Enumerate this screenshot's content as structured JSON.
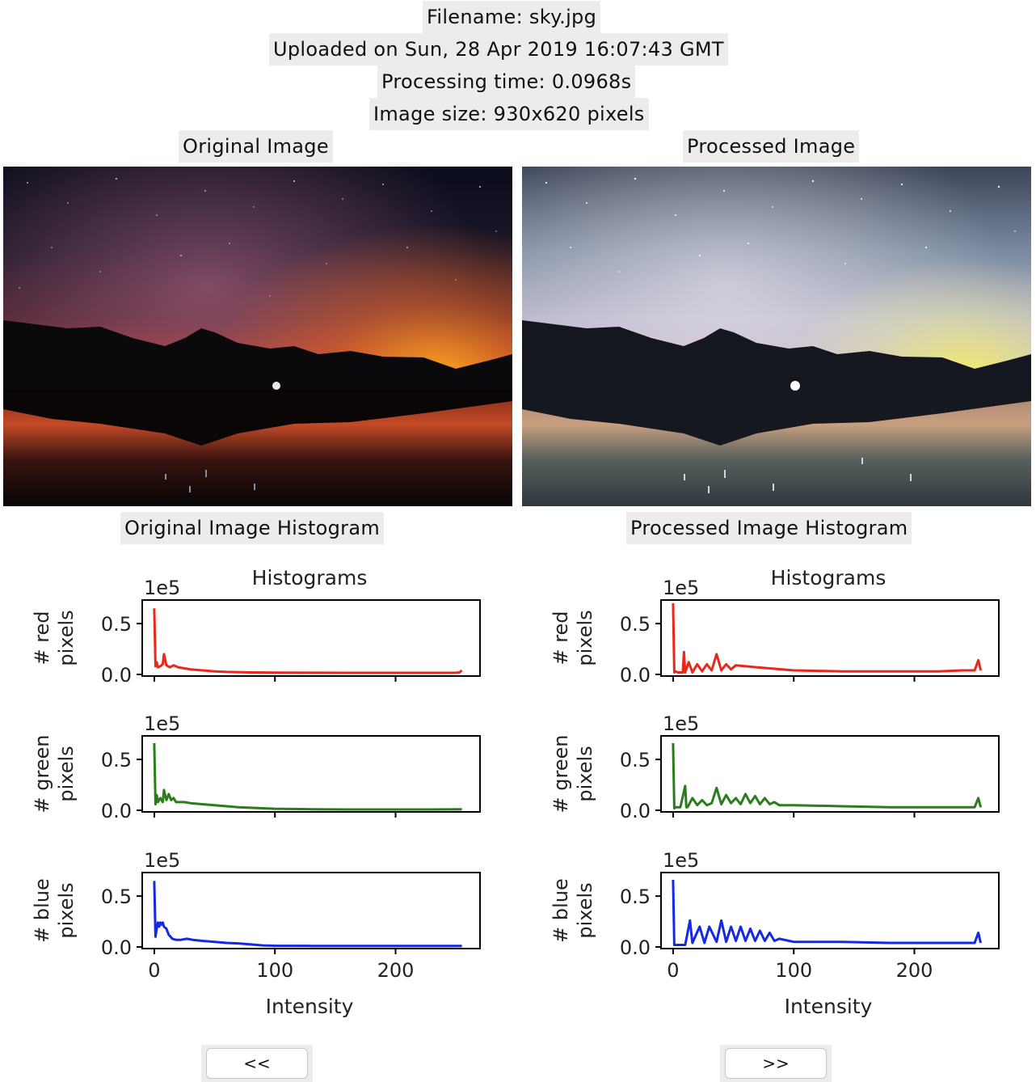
{
  "header": {
    "filename": "Filename: sky.jpg",
    "uploaded": "Uploaded on Sun, 28 Apr 2019 16:07:43 GMT",
    "processing_time": "Processing time: 0.0968s",
    "image_size": "Image size: 930x620 pixels"
  },
  "panels": {
    "original_title": "Original Image",
    "processed_title": "Processed Image",
    "original_hist_title": "Original Image Histogram",
    "processed_hist_title": "Processed Image Histogram"
  },
  "navigation": {
    "prev_label": "<<",
    "next_label": ">>"
  },
  "colors": {
    "red": "#e8281c",
    "green": "#2a7d1a",
    "blue": "#1428e8",
    "label_bg": "#ececec"
  },
  "chart_data": [
    {
      "type": "line",
      "title": "Histograms",
      "xlabel": "Intensity",
      "xlim": [
        -10,
        270
      ],
      "x_ticks": [
        0,
        100,
        200
      ],
      "y_ticks": [
        0.0,
        0.5
      ],
      "y_tick_labels": [
        "0.0",
        "0.5"
      ],
      "y_scale_label": "1e5",
      "ylim": [
        0,
        0.7
      ],
      "ylabels": [
        "# red\npixels",
        "# green\npixels",
        "# blue\npixels"
      ],
      "series": [
        {
          "name": "red",
          "x": [
            0,
            1,
            2,
            3,
            5,
            7,
            8,
            10,
            13,
            16,
            20,
            25,
            30,
            40,
            50,
            60,
            80,
            100,
            130,
            160,
            200,
            230,
            250,
            253,
            255
          ],
          "y": [
            0.65,
            0.08,
            0.12,
            0.07,
            0.08,
            0.1,
            0.2,
            0.09,
            0.07,
            0.09,
            0.07,
            0.06,
            0.05,
            0.04,
            0.03,
            0.025,
            0.02,
            0.018,
            0.017,
            0.016,
            0.016,
            0.016,
            0.017,
            0.02,
            0.04
          ]
        },
        {
          "name": "green",
          "x": [
            0,
            1,
            2,
            3,
            5,
            7,
            8,
            10,
            12,
            14,
            16,
            18,
            20,
            25,
            30,
            40,
            50,
            60,
            70,
            80,
            100,
            130,
            160,
            200,
            230,
            255
          ],
          "y": [
            0.66,
            0.06,
            0.15,
            0.08,
            0.12,
            0.08,
            0.2,
            0.1,
            0.16,
            0.1,
            0.12,
            0.08,
            0.08,
            0.08,
            0.07,
            0.06,
            0.05,
            0.04,
            0.03,
            0.025,
            0.015,
            0.01,
            0.008,
            0.008,
            0.008,
            0.01
          ]
        },
        {
          "name": "blue",
          "x": [
            0,
            1,
            2,
            3,
            4,
            5,
            6,
            7,
            8,
            10,
            12,
            15,
            18,
            22,
            27,
            32,
            40,
            50,
            60,
            70,
            80,
            90,
            100,
            130,
            160,
            200,
            230,
            255
          ],
          "y": [
            0.65,
            0.1,
            0.18,
            0.24,
            0.2,
            0.24,
            0.22,
            0.24,
            0.2,
            0.18,
            0.12,
            0.08,
            0.07,
            0.07,
            0.08,
            0.07,
            0.06,
            0.05,
            0.04,
            0.035,
            0.025,
            0.015,
            0.012,
            0.01,
            0.01,
            0.01,
            0.01,
            0.01
          ]
        }
      ]
    },
    {
      "type": "line",
      "title": "Histograms",
      "xlabel": "Intensity",
      "xlim": [
        -10,
        270
      ],
      "x_ticks": [
        0,
        100,
        200
      ],
      "y_ticks": [
        0.0,
        0.5
      ],
      "y_tick_labels": [
        "0.0",
        "0.5"
      ],
      "y_scale_label": "1e5",
      "ylim": [
        0,
        0.7
      ],
      "ylabels": [
        "# red\npixels",
        "# green\npixels",
        "# blue\npixels"
      ],
      "series": [
        {
          "name": "red",
          "x": [
            0,
            1,
            2,
            4,
            8,
            9,
            10,
            13,
            16,
            20,
            24,
            28,
            32,
            36,
            40,
            44,
            48,
            52,
            60,
            70,
            80,
            90,
            100,
            120,
            140,
            160,
            180,
            200,
            220,
            240,
            250,
            253,
            255
          ],
          "y": [
            0.7,
            0.02,
            0.03,
            0.02,
            0.02,
            0.22,
            0.02,
            0.12,
            0.02,
            0.1,
            0.03,
            0.1,
            0.04,
            0.2,
            0.04,
            0.1,
            0.05,
            0.09,
            0.08,
            0.07,
            0.06,
            0.05,
            0.04,
            0.035,
            0.03,
            0.03,
            0.03,
            0.03,
            0.03,
            0.04,
            0.04,
            0.14,
            0.04
          ],
          "note_spikes": []
        },
        {
          "name": "green",
          "x": [
            0,
            1,
            2,
            6,
            10,
            11,
            12,
            16,
            20,
            24,
            28,
            32,
            36,
            40,
            44,
            48,
            52,
            56,
            60,
            64,
            68,
            72,
            76,
            80,
            84,
            88,
            100,
            140,
            180,
            220,
            250,
            253,
            255
          ],
          "y": [
            0.66,
            0.02,
            0.03,
            0.03,
            0.24,
            0.03,
            0.03,
            0.12,
            0.05,
            0.1,
            0.05,
            0.07,
            0.22,
            0.06,
            0.15,
            0.07,
            0.12,
            0.06,
            0.16,
            0.07,
            0.14,
            0.06,
            0.12,
            0.06,
            0.08,
            0.05,
            0.05,
            0.04,
            0.03,
            0.03,
            0.03,
            0.12,
            0.03
          ]
        },
        {
          "name": "blue",
          "x": [
            0,
            1,
            2,
            10,
            14,
            16,
            22,
            26,
            30,
            36,
            40,
            44,
            48,
            52,
            56,
            60,
            64,
            68,
            72,
            76,
            80,
            84,
            88,
            100,
            140,
            180,
            220,
            250,
            253,
            255
          ],
          "y": [
            0.66,
            0.02,
            0.02,
            0.02,
            0.26,
            0.04,
            0.2,
            0.04,
            0.2,
            0.05,
            0.26,
            0.05,
            0.2,
            0.06,
            0.2,
            0.06,
            0.18,
            0.06,
            0.16,
            0.06,
            0.14,
            0.06,
            0.08,
            0.05,
            0.05,
            0.04,
            0.04,
            0.04,
            0.14,
            0.04
          ]
        }
      ]
    }
  ]
}
